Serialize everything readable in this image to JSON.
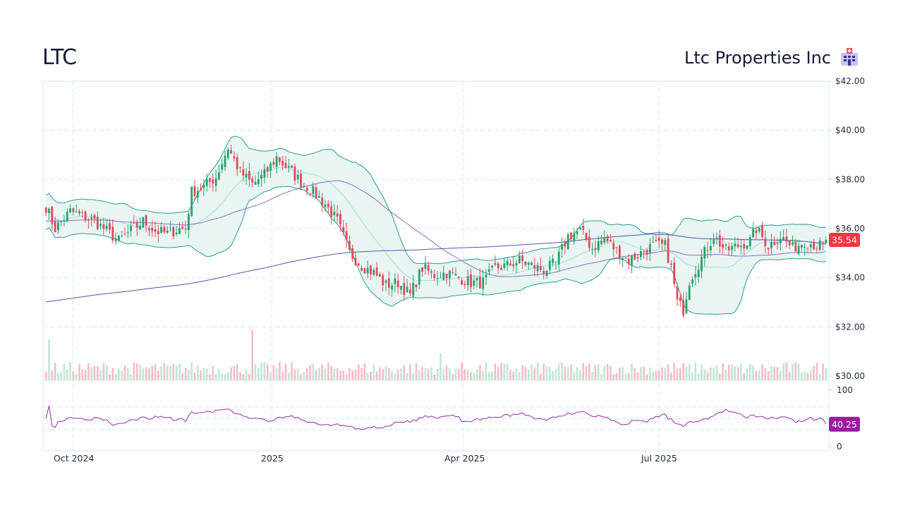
{
  "header": {
    "ticker": "LTC",
    "company_name": "Ltc Properties Inc",
    "logo_icon": "hospital-icon"
  },
  "colors": {
    "up": "#26a069",
    "down": "#e0485a",
    "volume_up": "#bfe6d3",
    "volume_down": "#f7bcc5",
    "bollinger_line": "#2a9d8f",
    "bollinger_fill": "#e8f5f3",
    "bollinger_mid": "#a8ddd4",
    "ma_short": "#8e6bc8",
    "ma_long": "#4a58b0",
    "rsi_line": "#9a2ca3",
    "grid": "#d3e8ee",
    "last_price_badge": "#f23645",
    "rsi_badge": "#9c1aa0"
  },
  "chart_data": {
    "type": "candlestick",
    "title": "LTC",
    "subtitle": "Ltc Properties Inc",
    "price_axis": {
      "ticks": [
        "$42.00",
        "$40.00",
        "$38.00",
        "$36.00",
        "$34.00",
        "$32.00",
        "$30.00"
      ],
      "tick_values": [
        42,
        40,
        38,
        36,
        34,
        32,
        30
      ],
      "range": [
        30,
        42
      ],
      "position": "right"
    },
    "x_axis": {
      "ticks": [
        "Oct 2024",
        "2025",
        "Apr 2025",
        "Jul 2025"
      ],
      "range": [
        "Sep 2024",
        "Sep 2025"
      ]
    },
    "rsi_axis": {
      "ticks": [
        "100",
        "0"
      ],
      "guide_levels": [
        70,
        50,
        30
      ]
    },
    "last_price": "35.54",
    "last_rsi": "40.25",
    "grid": true,
    "indicators": [
      "Bollinger Bands (20, 2)",
      "SMA 50",
      "SMA 200",
      "Volume",
      "RSI 14"
    ],
    "close_path": [
      [
        0,
        36.9
      ],
      [
        3,
        36.0
      ],
      [
        8,
        36.7
      ],
      [
        12,
        36.5
      ],
      [
        16,
        36.3
      ],
      [
        20,
        35.9
      ],
      [
        24,
        35.5
      ],
      [
        28,
        35.9
      ],
      [
        32,
        36.3
      ],
      [
        36,
        35.9
      ],
      [
        40,
        35.8
      ],
      [
        44,
        36.0
      ],
      [
        46,
        36.0
      ],
      [
        48,
        37.5
      ],
      [
        52,
        37.7
      ],
      [
        56,
        38.1
      ],
      [
        60,
        39.3
      ],
      [
        64,
        38.3
      ],
      [
        68,
        37.8
      ],
      [
        72,
        38.2
      ],
      [
        76,
        38.9
      ],
      [
        80,
        38.4
      ],
      [
        84,
        37.9
      ],
      [
        88,
        37.5
      ],
      [
        92,
        37.0
      ],
      [
        96,
        36.3
      ],
      [
        100,
        35.0
      ],
      [
        104,
        34.5
      ],
      [
        108,
        34.2
      ],
      [
        112,
        33.7
      ],
      [
        116,
        33.8
      ],
      [
        120,
        33.3
      ],
      [
        124,
        34.4
      ],
      [
        128,
        34.1
      ],
      [
        132,
        34.2
      ],
      [
        136,
        34.0
      ],
      [
        140,
        33.8
      ],
      [
        144,
        33.8
      ],
      [
        148,
        34.4
      ],
      [
        152,
        34.5
      ],
      [
        156,
        34.7
      ],
      [
        160,
        34.5
      ],
      [
        164,
        34.3
      ],
      [
        168,
        34.6
      ],
      [
        172,
        35.7
      ],
      [
        176,
        35.9
      ],
      [
        180,
        35.2
      ],
      [
        184,
        35.6
      ],
      [
        188,
        35.1
      ],
      [
        192,
        34.7
      ],
      [
        196,
        35.0
      ],
      [
        200,
        35.3
      ],
      [
        204,
        35.3
      ],
      [
        206,
        34.4
      ],
      [
        208,
        33.0
      ],
      [
        210,
        32.7
      ],
      [
        212,
        33.9
      ],
      [
        216,
        34.8
      ],
      [
        220,
        35.7
      ],
      [
        224,
        35.1
      ],
      [
        228,
        35.3
      ],
      [
        232,
        35.5
      ],
      [
        234,
        36.0
      ],
      [
        238,
        35.3
      ],
      [
        242,
        35.7
      ],
      [
        246,
        35.2
      ],
      [
        250,
        35.5
      ],
      [
        254,
        35.3
      ]
    ],
    "candle_count": 258
  }
}
